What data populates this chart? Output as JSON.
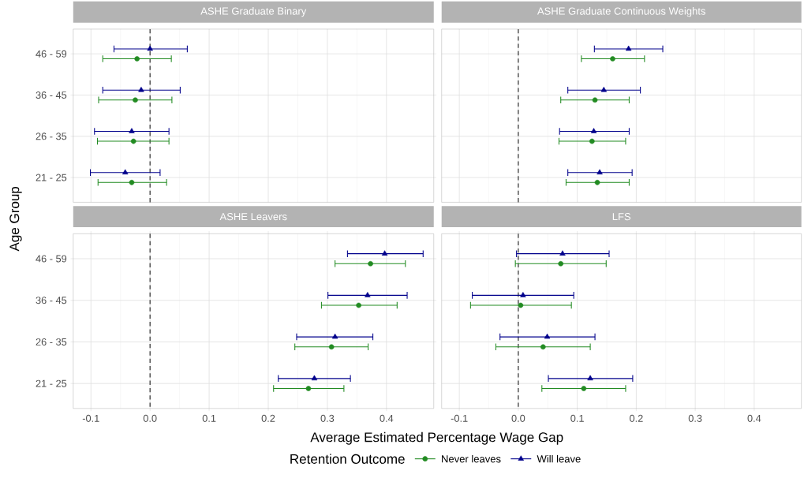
{
  "chart_data": [
    {
      "type": "scatter",
      "orientation": "horizontal",
      "title": "ASHE Graduate Binary",
      "ylabel": "Age Group",
      "legend": "bottom",
      "legend_title": "Retention Outcome",
      "categories": [
        "46 - 59",
        "36 - 45",
        "26 - 35",
        "21 - 25"
      ],
      "xlim": [
        -0.13,
        0.48
      ],
      "xticks": [
        {
          "value": -0.1,
          "label": null
        },
        {
          "value": 0,
          "label": null
        },
        {
          "value": 0.1,
          "label": null
        },
        {
          "value": 0.2,
          "label": null
        },
        {
          "value": 0.3,
          "label": null
        },
        {
          "value": 0.4,
          "label": null
        }
      ],
      "grid": true,
      "tick_labels": "y",
      "ref_lines": [
        {
          "axis": "x",
          "value": 0,
          "line_style": "dashed",
          "color": "#333333"
        }
      ],
      "series": [
        {
          "name": "Never leaves",
          "color": "#228B22",
          "marker": "circle",
          "values": [
            -0.022,
            -0.025,
            -0.028,
            -0.031
          ],
          "errors": [
            [
              -0.08,
              0.036
            ],
            [
              -0.087,
              0.037
            ],
            [
              -0.089,
              0.032
            ],
            [
              -0.088,
              0.028
            ]
          ]
        },
        {
          "name": "Will leave",
          "color": "#00008B",
          "marker": "triangle",
          "values": [
            0.0,
            -0.015,
            -0.031,
            -0.042
          ],
          "errors": [
            [
              -0.061,
              0.063
            ],
            [
              -0.08,
              0.051
            ],
            [
              -0.094,
              0.032
            ],
            [
              -0.101,
              0.017
            ]
          ]
        }
      ]
    },
    {
      "type": "scatter",
      "orientation": "horizontal",
      "title": "ASHE Graduate Continuous Weights",
      "categories": [
        null,
        null,
        null,
        null
      ],
      "xlim": [
        -0.13,
        0.48
      ],
      "xticks": [
        {
          "value": -0.1,
          "label": null
        },
        {
          "value": 0,
          "label": null
        },
        {
          "value": 0.1,
          "label": null
        },
        {
          "value": 0.2,
          "label": null
        },
        {
          "value": 0.3,
          "label": null
        },
        {
          "value": 0.4,
          "label": null
        }
      ],
      "grid": true,
      "tick_labels": false,
      "ref_lines": [
        {
          "axis": "x",
          "value": 0,
          "line_style": "dashed",
          "color": "#333333"
        }
      ],
      "series": [
        {
          "color": "#228B22",
          "marker": "circle",
          "values": [
            0.16,
            0.13,
            0.125,
            0.134
          ],
          "errors": [
            [
              0.107,
              0.214
            ],
            [
              0.072,
              0.188
            ],
            [
              0.069,
              0.182
            ],
            [
              0.081,
              0.188
            ]
          ]
        },
        {
          "color": "#00008B",
          "marker": "triangle",
          "values": [
            0.187,
            0.145,
            0.128,
            0.138
          ],
          "errors": [
            [
              0.129,
              0.245
            ],
            [
              0.084,
              0.207
            ],
            [
              0.07,
              0.188
            ],
            [
              0.084,
              0.193
            ]
          ]
        }
      ]
    },
    {
      "type": "scatter",
      "orientation": "horizontal",
      "title": "ASHE Leavers",
      "xlabel": "Average Estimated Percentage Wage Gap",
      "categories": [
        "46 - 59",
        "36 - 45",
        "26 - 35",
        "21 - 25"
      ],
      "xlim": [
        -0.13,
        0.48
      ],
      "xticks": [
        -0.1,
        {
          "value": 0,
          "label": "0.0"
        },
        0.1,
        0.2,
        0.3,
        0.4
      ],
      "grid": true,
      "ref_lines": [
        {
          "axis": "x",
          "value": 0,
          "line_style": "dashed",
          "color": "#333333"
        }
      ],
      "series": [
        {
          "color": "#228B22",
          "marker": "circle",
          "values": [
            0.373,
            0.353,
            0.307,
            0.268
          ],
          "errors": [
            [
              0.313,
              0.432
            ],
            [
              0.29,
              0.418
            ],
            [
              0.245,
              0.369
            ],
            [
              0.209,
              0.328
            ]
          ]
        },
        {
          "color": "#00008B",
          "marker": "triangle",
          "values": [
            0.397,
            0.368,
            0.313,
            0.278
          ],
          "errors": [
            [
              0.334,
              0.462
            ],
            [
              0.301,
              0.435
            ],
            [
              0.248,
              0.377
            ],
            [
              0.217,
              0.339
            ]
          ]
        }
      ]
    },
    {
      "type": "scatter",
      "orientation": "horizontal",
      "title": "LFS",
      "categories": [
        null,
        null,
        null,
        null
      ],
      "xlim": [
        -0.13,
        0.48
      ],
      "xticks": [
        -0.1,
        {
          "value": 0,
          "label": "0.0"
        },
        0.1,
        0.2,
        0.3,
        0.4
      ],
      "grid": true,
      "tick_labels": "x",
      "ref_lines": [
        {
          "axis": "x",
          "value": 0,
          "line_style": "dashed",
          "color": "#333333"
        }
      ],
      "series": [
        {
          "color": "#228B22",
          "marker": "circle",
          "values": [
            0.072,
            0.004,
            0.042,
            0.111
          ],
          "errors": [
            [
              -0.005,
              0.149
            ],
            [
              -0.081,
              0.09
            ],
            [
              -0.038,
              0.122
            ],
            [
              0.04,
              0.182
            ]
          ]
        },
        {
          "color": "#00008B",
          "marker": "triangle",
          "values": [
            0.075,
            0.008,
            0.049,
            0.122
          ],
          "errors": [
            [
              -0.003,
              0.154
            ],
            [
              -0.078,
              0.094
            ],
            [
              -0.031,
              0.13
            ],
            [
              0.051,
              0.194
            ]
          ]
        }
      ]
    }
  ]
}
